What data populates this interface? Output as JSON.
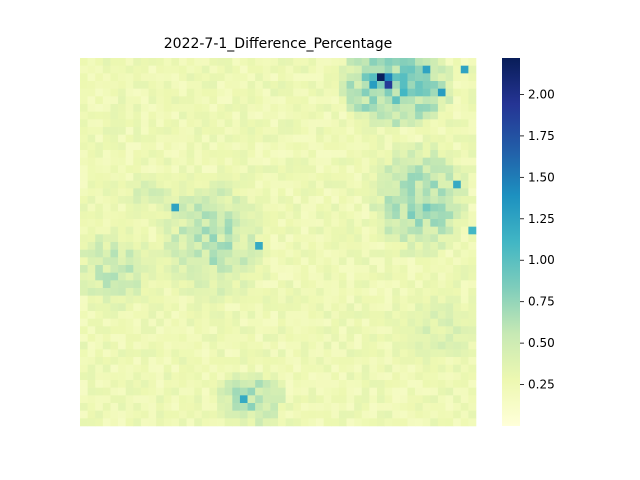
{
  "chart_data": {
    "type": "heatmap",
    "title": "2022-7-1_Difference_Percentage",
    "xlabel": "",
    "ylabel": "",
    "colormap": "YlGnBu",
    "colorbar": {
      "vmin": 0.0,
      "vmax": 2.22,
      "ticks": [
        0.25,
        0.5,
        0.75,
        1.0,
        1.25,
        1.5,
        1.75,
        2.0
      ],
      "tick_labels": [
        "0.25",
        "0.50",
        "0.75",
        "1.00",
        "1.25",
        "1.50",
        "1.75",
        "2.00"
      ]
    },
    "grid": {
      "rows": 48,
      "cols": 52,
      "background_value": 0.15,
      "hotspots": [
        {
          "row": 2,
          "col": 39,
          "value": 2.2
        },
        {
          "row": 3,
          "col": 40,
          "value": 1.9
        },
        {
          "row": 2,
          "col": 40,
          "value": 1.45
        },
        {
          "row": 3,
          "col": 38,
          "value": 1.3
        },
        {
          "row": 1,
          "col": 45,
          "value": 1.25
        },
        {
          "row": 1,
          "col": 50,
          "value": 1.25
        },
        {
          "row": 4,
          "col": 47,
          "value": 1.3
        },
        {
          "row": 19,
          "col": 12,
          "value": 1.25
        },
        {
          "row": 24,
          "col": 23,
          "value": 1.2
        },
        {
          "row": 44,
          "col": 21,
          "value": 1.2
        },
        {
          "row": 16,
          "col": 49,
          "value": 1.2
        },
        {
          "row": 22,
          "col": 51,
          "value": 1.1
        }
      ],
      "regions": [
        {
          "row": 3,
          "col": 41,
          "radius_rows": 6,
          "radius_cols": 8,
          "value": 0.95
        },
        {
          "row": 18,
          "col": 44,
          "radius_rows": 8,
          "radius_cols": 7,
          "value": 0.75
        },
        {
          "row": 23,
          "col": 17,
          "radius_rows": 9,
          "radius_cols": 8,
          "value": 0.65
        },
        {
          "row": 27,
          "col": 4,
          "radius_rows": 6,
          "radius_cols": 6,
          "value": 0.6
        },
        {
          "row": 44,
          "col": 22,
          "radius_rows": 4,
          "radius_cols": 5,
          "value": 0.7
        },
        {
          "row": 35,
          "col": 47,
          "radius_rows": 6,
          "radius_cols": 6,
          "value": 0.45
        },
        {
          "row": 17,
          "col": 9,
          "radius_rows": 3,
          "radius_cols": 6,
          "value": 0.45
        }
      ]
    }
  }
}
